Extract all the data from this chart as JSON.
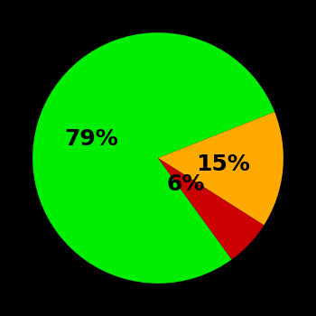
{
  "slices": [
    79,
    15,
    6
  ],
  "colors": [
    "#00ee00",
    "#ffaa00",
    "#cc0000"
  ],
  "labels": [
    "79%",
    "15%",
    "6%"
  ],
  "background_color": "#000000",
  "startangle": -54,
  "label_fontsize": 18,
  "label_fontweight": "bold",
  "label_colors": [
    "black",
    "black",
    "black"
  ],
  "label_radii": [
    0.55,
    0.52,
    0.3
  ]
}
